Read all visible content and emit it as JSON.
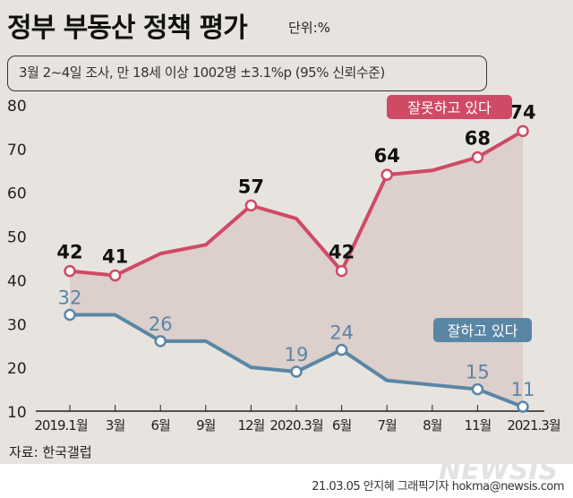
{
  "title": "정부 부동산 정책 평가",
  "unit": "단위:%",
  "subtitle": "3월 2~4일 조사, 만 18세 이상 1002명 ±3.1%p (95% 신뢰수준)",
  "source": "자료: 한국갤럽",
  "credit": "21.03.05 안지혜 그래픽기자 hokma@newsis.com",
  "watermark": "NEWSIS",
  "chart_data": {
    "type": "line",
    "categories": [
      "2019.1월",
      "3월",
      "6월",
      "9월",
      "12월",
      "2020.3월",
      "6월",
      "7월",
      "8월",
      "11월",
      "2021.3월"
    ],
    "ylim": [
      10,
      80
    ],
    "yticks": [
      10,
      20,
      30,
      40,
      50,
      60,
      70,
      80
    ],
    "series": [
      {
        "name": "잘못하고 있다",
        "color": "#cf4a65",
        "values": [
          42,
          41,
          46,
          48,
          57,
          54,
          42,
          64,
          65,
          68,
          74
        ],
        "labeled": [
          true,
          true,
          false,
          false,
          true,
          false,
          true,
          true,
          false,
          true,
          true
        ]
      },
      {
        "name": "잘하고 있다",
        "color": "#5a86a5",
        "values": [
          32,
          32,
          26,
          26,
          20,
          19,
          24,
          17,
          16,
          15,
          11
        ],
        "labeled": [
          true,
          false,
          true,
          false,
          false,
          true,
          true,
          false,
          false,
          true,
          true
        ]
      }
    ],
    "fill_between_color": "#dccfcc"
  }
}
